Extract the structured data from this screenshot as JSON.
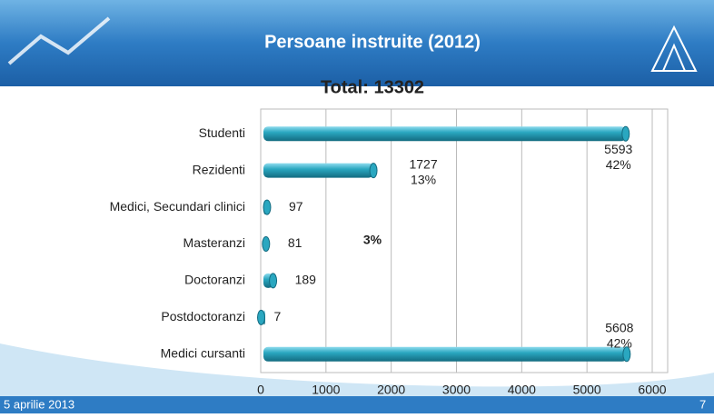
{
  "header": {
    "title": "Persoane instruite (2012)"
  },
  "chart_data": {
    "type": "bar",
    "orientation": "horizontal",
    "title": "Total: 13302",
    "categories": [
      "Studenti",
      "Rezidenti",
      "Medici, Secundari clinici",
      "Masteranzi",
      "Doctoranzi",
      "Postdoctoranzi",
      "Medici cursanti"
    ],
    "values": [
      5593,
      1727,
      97,
      81,
      189,
      7,
      5608
    ],
    "share_labels": [
      "42%",
      "13%",
      null,
      null,
      null,
      null,
      "42%"
    ],
    "annotation": "3%",
    "color": "#2aa7c0",
    "xlim": [
      0,
      6000
    ],
    "xticks": [
      0,
      1000,
      2000,
      3000,
      4000,
      5000,
      6000
    ],
    "grid": true
  },
  "footer": {
    "date": "5 aprilie 2013",
    "page": "7"
  }
}
